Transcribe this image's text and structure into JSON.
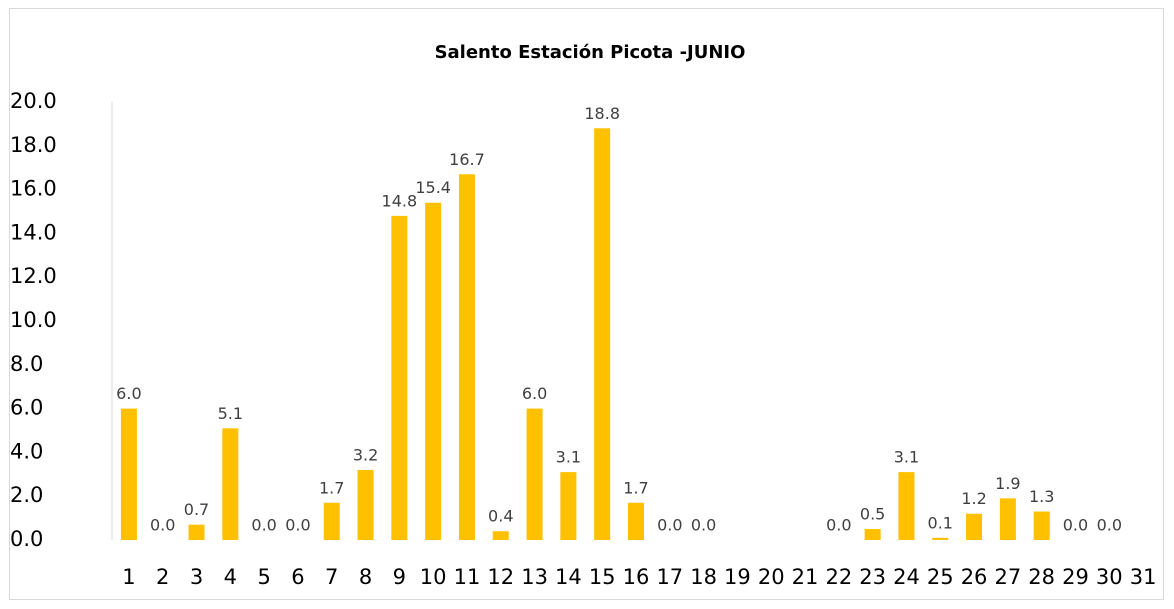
{
  "chart_data": {
    "type": "bar",
    "title": "Salento Estación Picota -JUNIO",
    "categories": [
      "1",
      "2",
      "3",
      "4",
      "5",
      "6",
      "7",
      "8",
      "9",
      "10",
      "11",
      "12",
      "13",
      "14",
      "15",
      "16",
      "17",
      "18",
      "19",
      "20",
      "21",
      "22",
      "23",
      "24",
      "25",
      "26",
      "27",
      "28",
      "29",
      "30",
      "31"
    ],
    "values": [
      6.0,
      0.0,
      0.7,
      5.1,
      0.0,
      0.0,
      1.7,
      3.2,
      14.8,
      15.4,
      16.7,
      0.4,
      6.0,
      3.1,
      18.8,
      1.7,
      0.0,
      0.0,
      null,
      null,
      null,
      0.0,
      0.5,
      3.1,
      0.1,
      1.2,
      1.9,
      1.3,
      0.0,
      0.0,
      null
    ],
    "value_labels": [
      "6.0",
      "0.0",
      "0.7",
      "5.1",
      "0.0",
      "0.0",
      "1.7",
      "3.2",
      "14.8",
      "15.4",
      "16.7",
      "0.4",
      "6.0",
      "3.1",
      "18.8",
      "1.7",
      "0.0",
      "0.0",
      null,
      null,
      null,
      "0.0",
      "0.5",
      "3.1",
      "0.1",
      "1.2",
      "1.9",
      "1.3",
      "0.0",
      "0.0",
      null
    ],
    "color": "#ffc000",
    "ylim": [
      0,
      20
    ],
    "yticks": [
      {
        "value": 0,
        "label": "0.0"
      },
      {
        "value": 2,
        "label": "2.0"
      },
      {
        "value": 4,
        "label": "4.0"
      },
      {
        "value": 6,
        "label": "6.0"
      },
      {
        "value": 8,
        "label": "8.0"
      },
      {
        "value": 10,
        "label": "10.0"
      },
      {
        "value": 12,
        "label": "12.0"
      },
      {
        "value": 14,
        "label": "14.0"
      },
      {
        "value": 16,
        "label": "16.0"
      },
      {
        "value": 18,
        "label": "18.0"
      },
      {
        "value": 20,
        "label": "20.0"
      }
    ],
    "grid": false
  }
}
